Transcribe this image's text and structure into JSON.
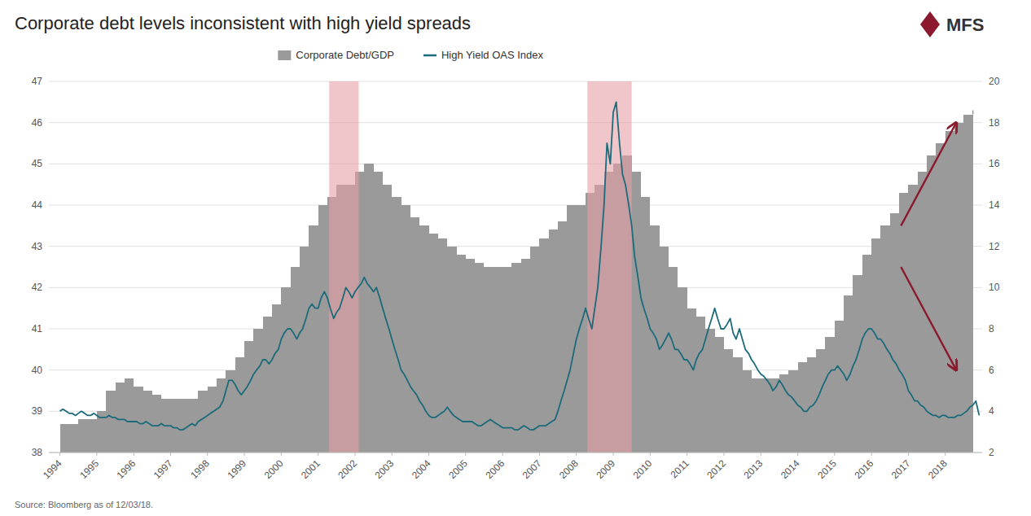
{
  "chart_data": {
    "type": "line",
    "title": "Corporate debt levels inconsistent with high yield spreads",
    "source": "Source: Bloomberg as of 12/03/18.",
    "logo": "MFS",
    "grid": true,
    "legend": "top",
    "xlim": [
      1993.7,
      2019.0
    ],
    "xticks": [
      1994,
      1995,
      1996,
      1997,
      1998,
      1999,
      2000,
      2001,
      2002,
      2003,
      2004,
      2005,
      2006,
      2007,
      2008,
      2009,
      2010,
      2011,
      2012,
      2013,
      2014,
      2015,
      2016,
      2017,
      2018
    ],
    "ylim": [
      38.0,
      47.0
    ],
    "yticks": [
      38,
      39,
      40,
      41,
      42,
      43,
      44,
      45,
      46,
      47
    ],
    "y2lim": [
      2.0,
      20.0
    ],
    "y2ticks": [
      2,
      4,
      6,
      8,
      10,
      12,
      14,
      16,
      18,
      20
    ],
    "bands": [
      {
        "x": [
          2001.3,
          2002.1
        ],
        "color": "#E8A0A8"
      },
      {
        "x": [
          2008.3,
          2009.5
        ],
        "color": "#E8A0A8"
      }
    ],
    "arrows": [
      {
        "from": [
          2016.8,
          43.5
        ],
        "to": [
          2018.3,
          46.0
        ],
        "color": "#8B1A2E"
      },
      {
        "from": [
          2016.8,
          42.5
        ],
        "to": [
          2018.3,
          40.0
        ],
        "color": "#8B1A2E"
      }
    ],
    "series": [
      {
        "name": "Corporate Debt/GDP",
        "type": "area",
        "line_style": "step",
        "color": "#9A9A9A",
        "x": [
          1994.0,
          1994.25,
          1994.5,
          1994.75,
          1995.0,
          1995.25,
          1995.5,
          1995.75,
          1996.0,
          1996.25,
          1996.5,
          1996.75,
          1997.0,
          1997.25,
          1997.5,
          1997.75,
          1998.0,
          1998.25,
          1998.5,
          1998.75,
          1999.0,
          1999.25,
          1999.5,
          1999.75,
          2000.0,
          2000.25,
          2000.5,
          2000.75,
          2001.0,
          2001.25,
          2001.5,
          2001.75,
          2002.0,
          2002.25,
          2002.5,
          2002.75,
          2003.0,
          2003.25,
          2003.5,
          2003.75,
          2004.0,
          2004.25,
          2004.5,
          2004.75,
          2005.0,
          2005.25,
          2005.5,
          2005.75,
          2006.0,
          2006.25,
          2006.5,
          2006.75,
          2007.0,
          2007.25,
          2007.5,
          2007.75,
          2008.0,
          2008.25,
          2008.5,
          2008.75,
          2009.0,
          2009.25,
          2009.5,
          2009.75,
          2010.0,
          2010.25,
          2010.5,
          2010.75,
          2011.0,
          2011.25,
          2011.5,
          2011.75,
          2012.0,
          2012.25,
          2012.5,
          2012.75,
          2013.0,
          2013.25,
          2013.5,
          2013.75,
          2014.0,
          2014.25,
          2014.5,
          2014.75,
          2015.0,
          2015.25,
          2015.5,
          2015.75,
          2016.0,
          2016.25,
          2016.5,
          2016.75,
          2017.0,
          2017.25,
          2017.5,
          2017.75,
          2018.0,
          2018.25,
          2018.5,
          2018.75
        ],
        "values": [
          38.7,
          38.7,
          38.8,
          38.8,
          39.0,
          39.5,
          39.7,
          39.8,
          39.6,
          39.5,
          39.4,
          39.3,
          39.3,
          39.3,
          39.3,
          39.5,
          39.6,
          39.8,
          40.0,
          40.3,
          40.7,
          41.0,
          41.3,
          41.6,
          42.0,
          42.5,
          43.0,
          43.5,
          44.0,
          44.2,
          44.5,
          44.5,
          44.8,
          45.0,
          44.8,
          44.5,
          44.2,
          44.0,
          43.7,
          43.5,
          43.3,
          43.2,
          43.0,
          42.8,
          42.7,
          42.6,
          42.5,
          42.5,
          42.5,
          42.6,
          42.7,
          43.0,
          43.2,
          43.4,
          43.6,
          44.0,
          44.0,
          44.3,
          44.5,
          44.8,
          45.0,
          45.2,
          44.8,
          44.2,
          43.5,
          43.0,
          42.5,
          42.0,
          41.5,
          41.3,
          41.0,
          40.8,
          40.5,
          40.3,
          40.0,
          39.8,
          39.8,
          39.8,
          39.9,
          40.0,
          40.2,
          40.3,
          40.5,
          40.8,
          41.2,
          41.8,
          42.3,
          42.8,
          43.2,
          43.5,
          43.8,
          44.3,
          44.5,
          44.8,
          45.2,
          45.5,
          45.8,
          46.0,
          46.2,
          46.3
        ]
      },
      {
        "name": "High Yield OAS Index",
        "type": "line",
        "axis": "y2",
        "color": "#1B6B7B",
        "x": [
          1994.0,
          1994.08,
          1994.17,
          1994.25,
          1994.33,
          1994.42,
          1994.5,
          1994.58,
          1994.67,
          1994.75,
          1994.83,
          1994.92,
          1995.0,
          1995.08,
          1995.17,
          1995.25,
          1995.33,
          1995.42,
          1995.5,
          1995.58,
          1995.67,
          1995.75,
          1995.83,
          1995.92,
          1996.0,
          1996.08,
          1996.17,
          1996.25,
          1996.33,
          1996.42,
          1996.5,
          1996.58,
          1996.67,
          1996.75,
          1996.83,
          1996.92,
          1997.0,
          1997.08,
          1997.17,
          1997.25,
          1997.33,
          1997.42,
          1997.5,
          1997.58,
          1997.67,
          1997.75,
          1997.83,
          1997.92,
          1998.0,
          1998.08,
          1998.17,
          1998.25,
          1998.33,
          1998.42,
          1998.5,
          1998.58,
          1998.67,
          1998.75,
          1998.83,
          1998.92,
          1999.0,
          1999.08,
          1999.17,
          1999.25,
          1999.33,
          1999.42,
          1999.5,
          1999.58,
          1999.67,
          1999.75,
          1999.83,
          1999.92,
          2000.0,
          2000.08,
          2000.17,
          2000.25,
          2000.33,
          2000.42,
          2000.5,
          2000.58,
          2000.67,
          2000.75,
          2000.83,
          2000.92,
          2001.0,
          2001.08,
          2001.17,
          2001.25,
          2001.33,
          2001.42,
          2001.5,
          2001.58,
          2001.67,
          2001.75,
          2001.83,
          2001.92,
          2002.0,
          2002.08,
          2002.17,
          2002.25,
          2002.33,
          2002.42,
          2002.5,
          2002.58,
          2002.67,
          2002.75,
          2002.83,
          2002.92,
          2003.0,
          2003.08,
          2003.17,
          2003.25,
          2003.33,
          2003.42,
          2003.5,
          2003.58,
          2003.67,
          2003.75,
          2003.83,
          2003.92,
          2004.0,
          2004.08,
          2004.17,
          2004.25,
          2004.33,
          2004.42,
          2004.5,
          2004.58,
          2004.67,
          2004.75,
          2004.83,
          2004.92,
          2005.0,
          2005.08,
          2005.17,
          2005.25,
          2005.33,
          2005.42,
          2005.5,
          2005.58,
          2005.67,
          2005.75,
          2005.83,
          2005.92,
          2006.0,
          2006.08,
          2006.17,
          2006.25,
          2006.33,
          2006.42,
          2006.5,
          2006.58,
          2006.67,
          2006.75,
          2006.83,
          2006.92,
          2007.0,
          2007.08,
          2007.17,
          2007.25,
          2007.33,
          2007.42,
          2007.5,
          2007.58,
          2007.67,
          2007.75,
          2007.83,
          2007.92,
          2008.0,
          2008.08,
          2008.17,
          2008.25,
          2008.33,
          2008.42,
          2008.5,
          2008.58,
          2008.67,
          2008.75,
          2008.83,
          2008.92,
          2009.0,
          2009.08,
          2009.17,
          2009.25,
          2009.33,
          2009.42,
          2009.5,
          2009.58,
          2009.67,
          2009.75,
          2009.83,
          2009.92,
          2010.0,
          2010.08,
          2010.17,
          2010.25,
          2010.33,
          2010.42,
          2010.5,
          2010.58,
          2010.67,
          2010.75,
          2010.83,
          2010.92,
          2011.0,
          2011.08,
          2011.17,
          2011.25,
          2011.33,
          2011.42,
          2011.5,
          2011.58,
          2011.67,
          2011.75,
          2011.83,
          2011.92,
          2012.0,
          2012.08,
          2012.17,
          2012.25,
          2012.33,
          2012.42,
          2012.5,
          2012.58,
          2012.67,
          2012.75,
          2012.83,
          2012.92,
          2013.0,
          2013.08,
          2013.17,
          2013.25,
          2013.33,
          2013.42,
          2013.5,
          2013.58,
          2013.67,
          2013.75,
          2013.83,
          2013.92,
          2014.0,
          2014.08,
          2014.17,
          2014.25,
          2014.33,
          2014.42,
          2014.5,
          2014.58,
          2014.67,
          2014.75,
          2014.83,
          2014.92,
          2015.0,
          2015.08,
          2015.17,
          2015.25,
          2015.33,
          2015.42,
          2015.5,
          2015.58,
          2015.67,
          2015.75,
          2015.83,
          2015.92,
          2016.0,
          2016.08,
          2016.17,
          2016.25,
          2016.33,
          2016.42,
          2016.5,
          2016.58,
          2016.67,
          2016.75,
          2016.83,
          2016.92,
          2017.0,
          2017.08,
          2017.17,
          2017.25,
          2017.33,
          2017.42,
          2017.5,
          2017.58,
          2017.67,
          2017.75,
          2017.83,
          2017.92,
          2018.0,
          2018.08,
          2018.17,
          2018.25,
          2018.33,
          2018.42,
          2018.5,
          2018.58,
          2018.67,
          2018.75,
          2018.83,
          2018.92
        ],
        "values": [
          4.0,
          4.1,
          4.0,
          3.9,
          3.9,
          3.8,
          3.9,
          4.0,
          3.9,
          3.8,
          3.8,
          3.9,
          3.8,
          3.7,
          3.7,
          3.7,
          3.8,
          3.7,
          3.7,
          3.6,
          3.6,
          3.6,
          3.5,
          3.5,
          3.5,
          3.5,
          3.4,
          3.4,
          3.5,
          3.4,
          3.3,
          3.3,
          3.3,
          3.4,
          3.3,
          3.3,
          3.3,
          3.2,
          3.2,
          3.1,
          3.1,
          3.2,
          3.3,
          3.4,
          3.3,
          3.5,
          3.6,
          3.7,
          3.8,
          3.9,
          4.0,
          4.1,
          4.2,
          4.5,
          5.0,
          5.5,
          5.5,
          5.3,
          5.0,
          4.8,
          5.0,
          5.2,
          5.5,
          5.8,
          6.0,
          6.2,
          6.5,
          6.5,
          6.3,
          6.5,
          6.8,
          7.0,
          7.5,
          7.8,
          8.0,
          8.0,
          7.8,
          7.5,
          7.8,
          8.0,
          8.5,
          9.0,
          9.2,
          9.0,
          9.0,
          9.5,
          9.8,
          9.5,
          9.0,
          8.5,
          8.8,
          9.0,
          9.5,
          10.0,
          9.8,
          9.5,
          9.8,
          10.0,
          10.2,
          10.5,
          10.2,
          10.0,
          9.8,
          10.0,
          9.5,
          9.0,
          8.5,
          8.0,
          7.5,
          7.0,
          6.5,
          6.0,
          5.8,
          5.5,
          5.2,
          5.0,
          4.8,
          4.5,
          4.3,
          4.0,
          3.8,
          3.7,
          3.7,
          3.8,
          3.9,
          4.0,
          4.2,
          4.0,
          3.8,
          3.7,
          3.6,
          3.5,
          3.5,
          3.5,
          3.5,
          3.4,
          3.3,
          3.3,
          3.4,
          3.5,
          3.6,
          3.5,
          3.4,
          3.3,
          3.2,
          3.2,
          3.2,
          3.2,
          3.1,
          3.1,
          3.2,
          3.3,
          3.2,
          3.1,
          3.1,
          3.2,
          3.3,
          3.3,
          3.3,
          3.4,
          3.5,
          3.6,
          4.0,
          4.5,
          5.0,
          5.5,
          6.0,
          6.8,
          7.5,
          8.0,
          8.5,
          9.0,
          8.5,
          8.0,
          9.0,
          10.0,
          12.0,
          14.0,
          17.0,
          16.0,
          18.5,
          19.0,
          17.0,
          15.5,
          15.0,
          14.0,
          13.0,
          11.5,
          10.5,
          9.5,
          9.0,
          8.5,
          8.0,
          7.8,
          7.5,
          7.0,
          7.2,
          7.5,
          7.8,
          7.5,
          7.0,
          7.0,
          6.8,
          6.5,
          6.5,
          6.3,
          6.0,
          6.5,
          6.8,
          7.0,
          7.5,
          8.0,
          8.5,
          9.0,
          8.5,
          8.0,
          8.0,
          8.2,
          8.5,
          7.8,
          7.5,
          8.0,
          7.5,
          7.0,
          6.8,
          6.5,
          6.3,
          6.0,
          5.8,
          5.7,
          5.5,
          5.3,
          5.0,
          5.2,
          5.5,
          5.3,
          5.0,
          4.8,
          4.7,
          4.5,
          4.3,
          4.2,
          4.0,
          4.0,
          4.2,
          4.3,
          4.5,
          4.8,
          5.2,
          5.5,
          5.8,
          6.0,
          6.0,
          6.2,
          6.0,
          5.8,
          5.5,
          5.8,
          6.2,
          6.5,
          7.0,
          7.5,
          7.8,
          8.0,
          8.0,
          7.8,
          7.5,
          7.5,
          7.3,
          7.0,
          6.8,
          6.5,
          6.3,
          6.0,
          5.8,
          5.5,
          5.0,
          4.8,
          4.5,
          4.5,
          4.3,
          4.2,
          4.0,
          3.9,
          3.8,
          3.8,
          3.7,
          3.8,
          3.8,
          3.7,
          3.7,
          3.7,
          3.8,
          3.8,
          3.9,
          4.0,
          4.2,
          4.3,
          4.5,
          3.8
        ]
      }
    ]
  }
}
